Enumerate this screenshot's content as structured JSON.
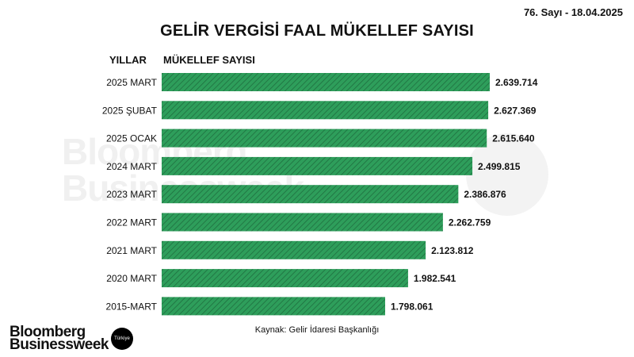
{
  "header": {
    "issue": "76. Sayı - 18.04.2025",
    "title": "GELİR VERGİSİ FAAL MÜKELLEF SAYISI",
    "col_years": "YILLAR",
    "col_values": "MÜKELLEF SAYISI"
  },
  "watermark": {
    "line1": "Bloomberg",
    "line2": "Businessweek",
    "badge": "Türkiye"
  },
  "footer": {
    "source": "Kaynak: Gelir İdaresi Başkanlığı",
    "logo_line1": "Bloomberg",
    "logo_line2": "Businessweek",
    "logo_badge": "Türkiye"
  },
  "colors": {
    "bar": "#2e9e5b",
    "bar_stripe": "#1f6f3f"
  },
  "chart_data": {
    "type": "bar",
    "orientation": "horizontal",
    "categories": [
      "2025 MART",
      "2025 ŞUBAT",
      "2025 OCAK",
      "2024 MART",
      "2023 MART",
      "2022 MART",
      "2021 MART",
      "2020 MART",
      "2015-MART"
    ],
    "values": [
      2639714,
      2627369,
      2615640,
      2499815,
      2386876,
      2262759,
      2123812,
      1982541,
      1798061
    ],
    "value_labels": [
      "2.639.714",
      "2.627.369",
      "2.615.640",
      "2.499.815",
      "2.386.876",
      "2.262.759",
      "2.123.812",
      "1.982.541",
      "1.798.061"
    ],
    "title": "GELİR VERGİSİ FAAL MÜKELLEF SAYISI",
    "xlabel": "MÜKELLEF SAYISI",
    "ylabel": "YILLAR",
    "grid": false,
    "legend": "none"
  }
}
